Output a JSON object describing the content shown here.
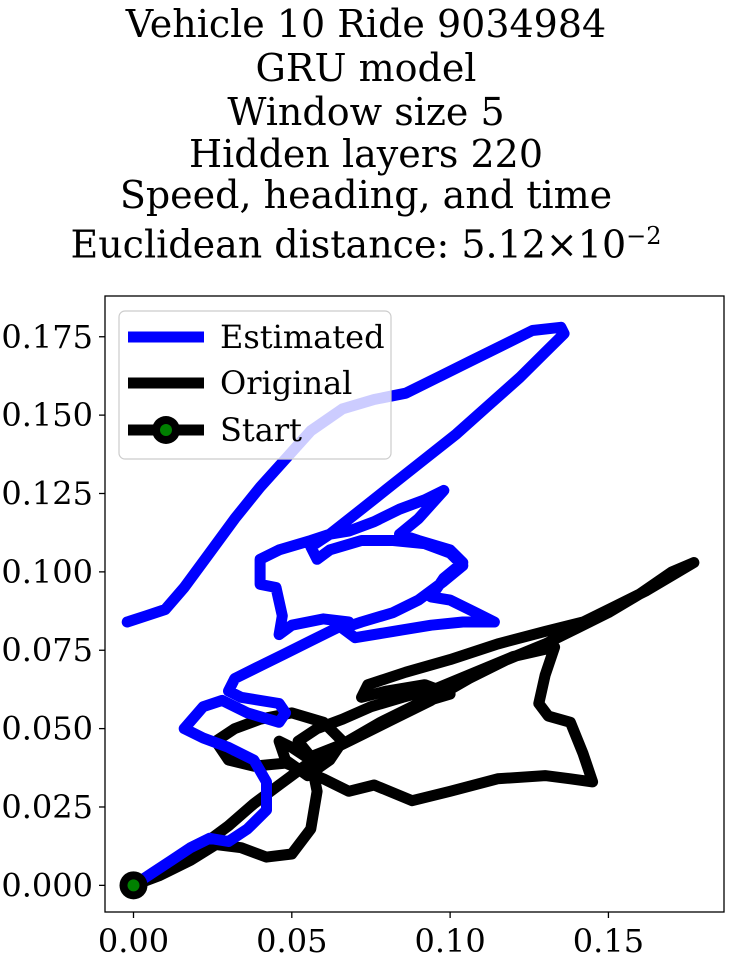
{
  "title": {
    "lines": [
      "Vehicle 10 Ride 9034984",
      "GRU model",
      "Window size 5",
      "Hidden layers 220",
      "Speed, heading, and time"
    ],
    "distance_prefix": "Euclidean distance: 5.12×10",
    "distance_exponent": "−2"
  },
  "chart_data": {
    "type": "line",
    "xlim": [
      -0.009,
      0.1865
    ],
    "ylim": [
      -0.0085,
      0.188
    ],
    "x_ticks": [
      0.0,
      0.05,
      0.1,
      0.15
    ],
    "x_tick_labels": [
      "0.00",
      "0.05",
      "0.10",
      "0.15"
    ],
    "y_ticks": [
      0.0,
      0.025,
      0.05,
      0.075,
      0.1,
      0.125,
      0.15,
      0.175
    ],
    "y_tick_labels": [
      "0.000",
      "0.025",
      "0.050",
      "0.075",
      "0.100",
      "0.125",
      "0.150",
      "0.175"
    ],
    "legend": {
      "position": "upper-left",
      "entries": [
        {
          "label": "Estimated",
          "color": "#0000ff"
        },
        {
          "label": "Original",
          "color": "#000000"
        },
        {
          "label": "Start",
          "color": "#000000",
          "marker_color": "#008000"
        }
      ]
    },
    "series": [
      {
        "name": "Original",
        "color": "#000000",
        "points": [
          [
            0.0,
            0.0
          ],
          [
            0.008,
            0.003
          ],
          [
            0.018,
            0.008
          ],
          [
            0.026,
            0.013
          ],
          [
            0.034,
            0.012
          ],
          [
            0.042,
            0.009
          ],
          [
            0.05,
            0.01
          ],
          [
            0.056,
            0.018
          ],
          [
            0.058,
            0.03
          ],
          [
            0.056,
            0.04
          ],
          [
            0.05,
            0.044
          ],
          [
            0.046,
            0.046
          ],
          [
            0.048,
            0.04
          ],
          [
            0.055,
            0.035
          ],
          [
            0.062,
            0.04
          ],
          [
            0.066,
            0.046
          ],
          [
            0.06,
            0.052
          ],
          [
            0.05,
            0.055
          ],
          [
            0.04,
            0.053
          ],
          [
            0.032,
            0.05
          ],
          [
            0.026,
            0.046
          ],
          [
            0.03,
            0.04
          ],
          [
            0.038,
            0.038
          ],
          [
            0.048,
            0.039
          ],
          [
            0.06,
            0.034
          ],
          [
            0.068,
            0.03
          ],
          [
            0.076,
            0.032
          ],
          [
            0.088,
            0.027
          ],
          [
            0.1,
            0.03
          ],
          [
            0.115,
            0.034
          ],
          [
            0.13,
            0.035
          ],
          [
            0.138,
            0.034
          ],
          [
            0.145,
            0.033
          ],
          [
            0.142,
            0.042
          ],
          [
            0.138,
            0.052
          ],
          [
            0.131,
            0.054
          ],
          [
            0.128,
            0.058
          ],
          [
            0.13,
            0.067
          ],
          [
            0.133,
            0.076
          ],
          [
            0.12,
            0.073
          ],
          [
            0.108,
            0.068
          ],
          [
            0.096,
            0.063
          ],
          [
            0.085,
            0.06
          ],
          [
            0.075,
            0.057
          ],
          [
            0.066,
            0.053
          ],
          [
            0.058,
            0.05
          ],
          [
            0.052,
            0.046
          ],
          [
            0.056,
            0.041
          ],
          [
            0.066,
            0.045
          ],
          [
            0.078,
            0.052
          ],
          [
            0.09,
            0.058
          ],
          [
            0.1,
            0.061
          ],
          [
            0.092,
            0.064
          ],
          [
            0.08,
            0.062
          ],
          [
            0.072,
            0.06
          ],
          [
            0.074,
            0.064
          ],
          [
            0.086,
            0.068
          ],
          [
            0.1,
            0.072
          ],
          [
            0.115,
            0.077
          ],
          [
            0.13,
            0.081
          ],
          [
            0.142,
            0.084
          ],
          [
            0.152,
            0.089
          ],
          [
            0.162,
            0.094
          ],
          [
            0.172,
            0.1
          ],
          [
            0.177,
            0.103
          ],
          [
            0.17,
            0.1
          ],
          [
            0.16,
            0.093
          ],
          [
            0.15,
            0.087
          ],
          [
            0.14,
            0.082
          ],
          [
            0.13,
            0.077
          ],
          [
            0.118,
            0.072
          ],
          [
            0.106,
            0.066
          ],
          [
            0.094,
            0.059
          ],
          [
            0.082,
            0.053
          ],
          [
            0.072,
            0.048
          ],
          [
            0.062,
            0.043
          ],
          [
            0.054,
            0.038
          ],
          [
            0.046,
            0.032
          ],
          [
            0.038,
            0.026
          ],
          [
            0.03,
            0.019
          ],
          [
            0.022,
            0.013
          ],
          [
            0.014,
            0.008
          ],
          [
            0.006,
            0.003
          ],
          [
            0.0,
            0.0
          ]
        ]
      },
      {
        "name": "Estimated",
        "color": "#0000ff",
        "points": [
          [
            0.0,
            0.0
          ],
          [
            0.006,
            0.004
          ],
          [
            0.012,
            0.008
          ],
          [
            0.018,
            0.012
          ],
          [
            0.024,
            0.015
          ],
          [
            0.03,
            0.014
          ],
          [
            0.036,
            0.018
          ],
          [
            0.042,
            0.024
          ],
          [
            0.042,
            0.033
          ],
          [
            0.038,
            0.04
          ],
          [
            0.03,
            0.044
          ],
          [
            0.022,
            0.047
          ],
          [
            0.016,
            0.05
          ],
          [
            0.022,
            0.057
          ],
          [
            0.028,
            0.059
          ],
          [
            0.036,
            0.055
          ],
          [
            0.046,
            0.052
          ],
          [
            0.048,
            0.055
          ],
          [
            0.046,
            0.058
          ],
          [
            0.034,
            0.06
          ],
          [
            0.03,
            0.062
          ],
          [
            0.032,
            0.066
          ],
          [
            0.04,
            0.07
          ],
          [
            0.048,
            0.074
          ],
          [
            0.056,
            0.078
          ],
          [
            0.064,
            0.082
          ],
          [
            0.068,
            0.084
          ],
          [
            0.06,
            0.085
          ],
          [
            0.05,
            0.083
          ],
          [
            0.046,
            0.08
          ],
          [
            0.047,
            0.086
          ],
          [
            0.045,
            0.095
          ],
          [
            0.04,
            0.096
          ],
          [
            0.04,
            0.1
          ],
          [
            0.04,
            0.104
          ],
          [
            0.046,
            0.107
          ],
          [
            0.056,
            0.11
          ],
          [
            0.062,
            0.112
          ],
          [
            0.068,
            0.113
          ],
          [
            0.076,
            0.116
          ],
          [
            0.084,
            0.12
          ],
          [
            0.092,
            0.123
          ],
          [
            0.098,
            0.126
          ],
          [
            0.09,
            0.117
          ],
          [
            0.084,
            0.112
          ],
          [
            0.09,
            0.11
          ],
          [
            0.1,
            0.107
          ],
          [
            0.104,
            0.103
          ],
          [
            0.098,
            0.098
          ],
          [
            0.094,
            0.092
          ],
          [
            0.1,
            0.091
          ],
          [
            0.108,
            0.087
          ],
          [
            0.114,
            0.084
          ],
          [
            0.104,
            0.084
          ],
          [
            0.094,
            0.083
          ],
          [
            0.082,
            0.081
          ],
          [
            0.07,
            0.079
          ],
          [
            0.066,
            0.082
          ],
          [
            0.072,
            0.084
          ],
          [
            0.082,
            0.087
          ],
          [
            0.09,
            0.091
          ],
          [
            0.098,
            0.097
          ],
          [
            0.104,
            0.102
          ],
          [
            0.1,
            0.106
          ],
          [
            0.092,
            0.109
          ],
          [
            0.082,
            0.11
          ],
          [
            0.072,
            0.11
          ],
          [
            0.062,
            0.107
          ],
          [
            0.058,
            0.104
          ],
          [
            0.056,
            0.108
          ],
          [
            0.062,
            0.112
          ],
          [
            0.072,
            0.12
          ],
          [
            0.082,
            0.128
          ],
          [
            0.092,
            0.136
          ],
          [
            0.102,
            0.144
          ],
          [
            0.112,
            0.153
          ],
          [
            0.122,
            0.162
          ],
          [
            0.13,
            0.17
          ],
          [
            0.136,
            0.176
          ],
          [
            0.135,
            0.178
          ],
          [
            0.126,
            0.177
          ],
          [
            0.116,
            0.172
          ],
          [
            0.106,
            0.167
          ],
          [
            0.096,
            0.162
          ],
          [
            0.086,
            0.157
          ],
          [
            0.076,
            0.155
          ],
          [
            0.066,
            0.152
          ],
          [
            0.056,
            0.145
          ],
          [
            0.048,
            0.136
          ],
          [
            0.04,
            0.127
          ],
          [
            0.032,
            0.117
          ],
          [
            0.024,
            0.106
          ],
          [
            0.016,
            0.095
          ],
          [
            0.01,
            0.088
          ],
          [
            0.004,
            0.086
          ],
          [
            -0.002,
            0.084
          ]
        ]
      }
    ]
  }
}
